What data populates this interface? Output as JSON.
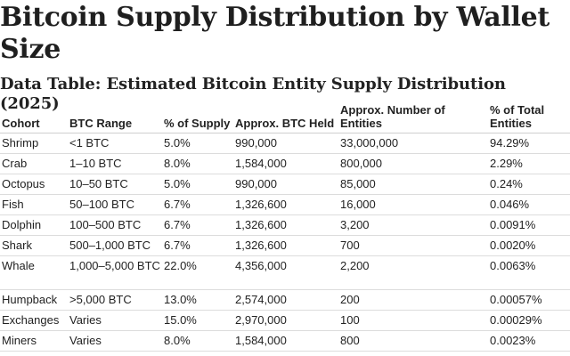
{
  "document": {
    "title": "Bitcoin Supply Distribution by Wallet Size",
    "subtitle": "Data Table: Estimated Bitcoin Entity Supply Distribution (2025)"
  },
  "table": {
    "headers": [
      "Cohort",
      "BTC Range",
      "% of Supply",
      "Approx. BTC Held",
      "Approx. Number of Entities",
      "% of Total Entities"
    ],
    "rows": [
      [
        "Shrimp",
        "<1 BTC",
        "5.0%",
        "990,000",
        "33,000,000",
        "94.29%"
      ],
      [
        "Crab",
        "1–10 BTC",
        "8.0%",
        "1,584,000",
        "800,000",
        "2.29%"
      ],
      [
        "Octopus",
        "10–50 BTC",
        "5.0%",
        "990,000",
        "85,000",
        "0.24%"
      ],
      [
        "Fish",
        "50–100 BTC",
        "6.7%",
        "1,326,600",
        "16,000",
        "0.046%"
      ],
      [
        "Dolphin",
        "100–500 BTC",
        "6.7%",
        "1,326,600",
        "3,200",
        "0.0091%"
      ],
      [
        "Shark",
        "500–1,000 BTC",
        "6.7%",
        "1,326,600",
        "700",
        "0.0020%"
      ],
      [
        "Whale",
        "1,000–5,000 BTC",
        "22.0%",
        "4,356,000",
        "2,200",
        "0.0063%"
      ],
      [
        "Humpback",
        ">5,000 BTC",
        "13.0%",
        "2,574,000",
        "200",
        "0.00057%"
      ],
      [
        "Exchanges",
        "Varies",
        "15.0%",
        "2,970,000",
        "100",
        "0.00029%"
      ],
      [
        "Miners",
        "Varies",
        "8.0%",
        "1,584,000",
        "800",
        "0.0023%"
      ]
    ]
  }
}
